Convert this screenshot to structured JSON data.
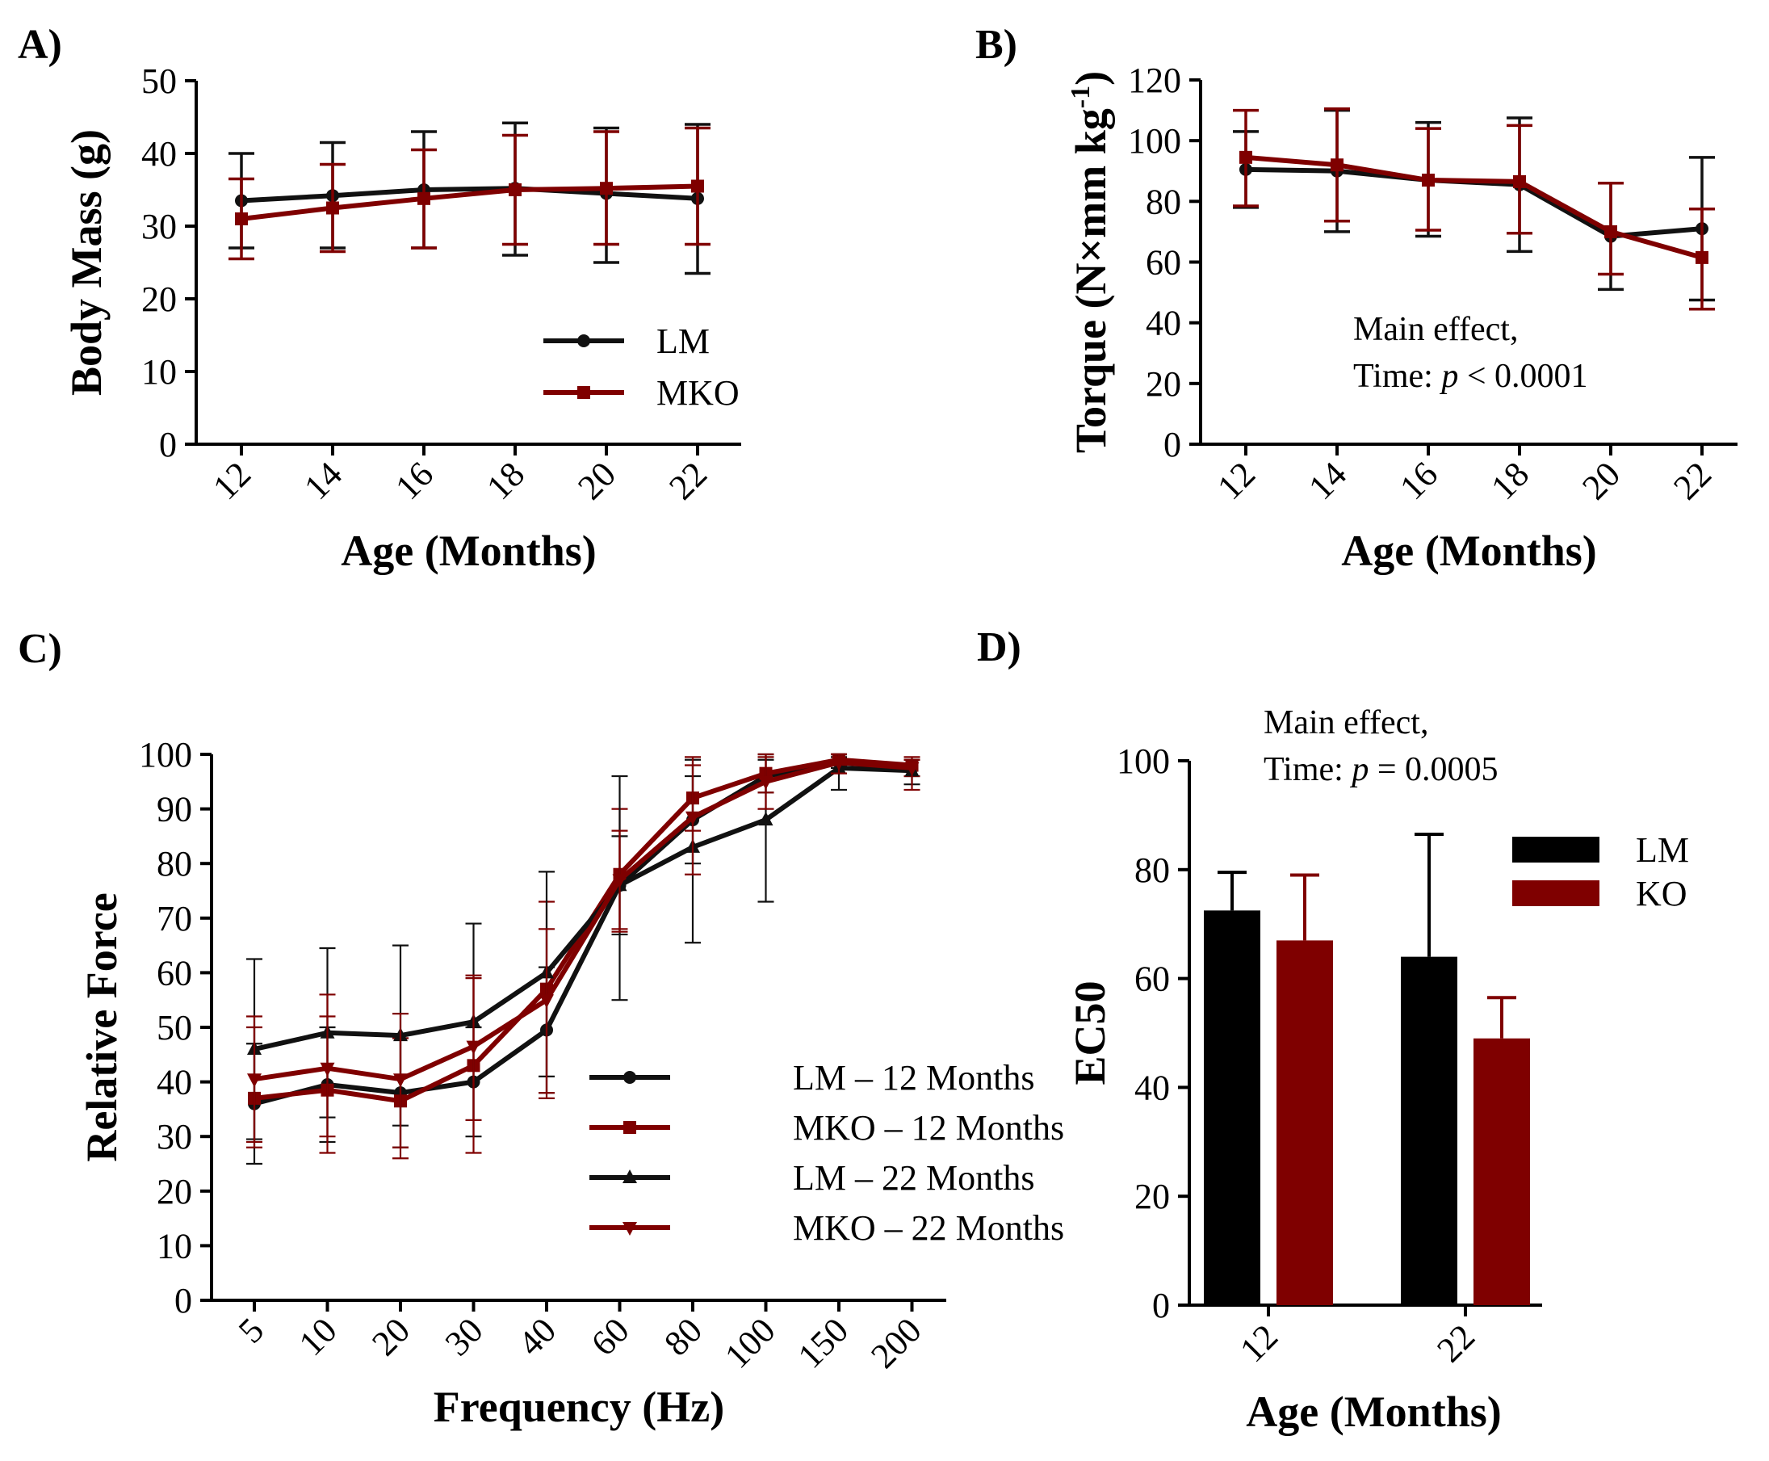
{
  "colors": {
    "black": "#111111",
    "red": "#7f0000"
  },
  "chart_data": [
    {
      "id": "A",
      "panel_label": "A)",
      "type": "line",
      "x": [
        12,
        14,
        16,
        18,
        20,
        22
      ],
      "x_tick_labels": [
        "12",
        "14",
        "16",
        "18",
        "20",
        "22"
      ],
      "xlabel": "Age (Months)",
      "ylabel": "Body Mass (g)",
      "ylim": [
        0,
        50
      ],
      "y_ticks": [
        0,
        10,
        20,
        30,
        40,
        50
      ],
      "grid": false,
      "legend_position": "right",
      "annotation": null,
      "series": [
        {
          "name": "LM",
          "color": "#111111",
          "marker": "circle",
          "values": [
            33.5,
            34.2,
            35.0,
            35.2,
            34.5,
            33.8
          ],
          "err_up": [
            40,
            41.5,
            43,
            44.2,
            43.5,
            44
          ],
          "err_down": [
            27,
            27,
            27,
            26,
            25,
            23.5
          ]
        },
        {
          "name": "MKO",
          "color": "#7f0000",
          "marker": "square",
          "values": [
            31.0,
            32.5,
            33.8,
            35.0,
            35.2,
            35.5
          ],
          "err_up": [
            36.5,
            38.5,
            40.5,
            42.5,
            43,
            43.5
          ],
          "err_down": [
            25.5,
            26.5,
            27,
            27.5,
            27.5,
            27.5
          ]
        }
      ]
    },
    {
      "id": "B",
      "panel_label": "B)",
      "type": "line",
      "x": [
        12,
        14,
        16,
        18,
        20,
        22
      ],
      "x_tick_labels": [
        "12",
        "14",
        "16",
        "18",
        "20",
        "22"
      ],
      "xlabel": "Age (Months)",
      "ylabel": "Torque (N×mm kg",
      "ylabel_sup": "-1",
      "ylabel_tail": ")",
      "ylim": [
        0,
        120
      ],
      "y_ticks": [
        0,
        20,
        40,
        60,
        80,
        100,
        120
      ],
      "grid": false,
      "legend_position": "none",
      "annotation": {
        "line1": "Main effect,",
        "line2_prefix": "Time: ",
        "line2_italic": "p",
        "line2_suffix": " < 0.0001"
      },
      "series": [
        {
          "name": "LM",
          "color": "#111111",
          "marker": "circle",
          "values": [
            90.5,
            90.0,
            87.0,
            85.5,
            68.5,
            71.0
          ],
          "err_up": [
            103,
            110,
            106,
            107.5,
            86,
            94.5
          ],
          "err_down": [
            78,
            70,
            68.5,
            63.5,
            51,
            47.5
          ]
        },
        {
          "name": "MKO",
          "color": "#7f0000",
          "marker": "square",
          "values": [
            94.5,
            92.0,
            87.0,
            86.5,
            70.0,
            61.5
          ],
          "err_up": [
            110,
            110.5,
            104,
            105,
            86,
            77.5
          ],
          "err_down": [
            78.5,
            73.5,
            70.5,
            69.5,
            56,
            44.5
          ]
        }
      ]
    },
    {
      "id": "C",
      "panel_label": "C)",
      "type": "line",
      "x": [
        5,
        10,
        20,
        30,
        40,
        60,
        80,
        100,
        150,
        200
      ],
      "x_tick_labels": [
        "5",
        "10",
        "20",
        "30",
        "40",
        "60",
        "80",
        "100",
        "150",
        "200"
      ],
      "xlabel": "Frequency (Hz)",
      "ylabel": "Relative Force",
      "ylim": [
        0,
        100
      ],
      "y_ticks": [
        0,
        10,
        20,
        30,
        40,
        50,
        60,
        70,
        80,
        90,
        100
      ],
      "grid": false,
      "legend_position": "lower-right",
      "annotation": null,
      "series": [
        {
          "name": "LM – 12 Months",
          "color": "#111111",
          "marker": "circle",
          "values": [
            36.0,
            39.5,
            38.0,
            40.0,
            49.5,
            76.0,
            88.0,
            96.0,
            98.5,
            97.5
          ],
          "err_up": [
            47,
            50,
            48,
            50,
            61,
            85,
            96,
            99,
            99.5,
            99
          ],
          "err_down": [
            25,
            29,
            28,
            30,
            38,
            67,
            80,
            93,
            97.5,
            96
          ]
        },
        {
          "name": "MKO – 12 Months",
          "color": "#7f0000",
          "marker": "square",
          "values": [
            37.0,
            38.5,
            36.5,
            43.0,
            57.0,
            78.0,
            92.0,
            96.5,
            99.0,
            98.0
          ],
          "err_up": [
            50,
            52,
            48,
            59,
            73,
            90,
            98,
            99.5,
            100,
            99.5
          ],
          "err_down": [
            28,
            27,
            26,
            27,
            37,
            68,
            86,
            93,
            98,
            96
          ]
        },
        {
          "name": "LM – 22 Months",
          "color": "#111111",
          "marker": "triangle",
          "values": [
            46.0,
            49.0,
            48.5,
            51.0,
            60.0,
            76.0,
            83.0,
            88.0,
            97.5,
            97.0
          ],
          "err_up": [
            62.5,
            64.5,
            65,
            69,
            78.5,
            96,
            99,
            100,
            100,
            99
          ],
          "err_down": [
            29.5,
            33.5,
            32,
            33,
            41,
            55,
            65.5,
            73,
            93.5,
            94.5
          ]
        },
        {
          "name": "MKO – 22 Months",
          "color": "#7f0000",
          "marker": "triangle-down",
          "values": [
            40.5,
            42.5,
            40.5,
            46.5,
            55.0,
            77.0,
            88.5,
            95.0,
            98.5,
            97.5
          ],
          "err_up": [
            52,
            56,
            52.5,
            59.5,
            68,
            86,
            99.5,
            100,
            100,
            99
          ],
          "err_down": [
            29,
            30,
            28,
            33,
            38,
            67.5,
            78,
            90,
            96.5,
            93.5
          ]
        }
      ]
    },
    {
      "id": "D",
      "panel_label": "D)",
      "type": "bar",
      "categories": [
        "12",
        "22"
      ],
      "xlabel": "Age (Months)",
      "ylabel": "EC50",
      "ylim": [
        0,
        100
      ],
      "y_ticks": [
        0,
        20,
        40,
        60,
        80,
        100
      ],
      "grid": false,
      "legend_position": "top-right",
      "annotation": {
        "line1": "Main effect,",
        "line2_prefix": "Time: ",
        "line2_italic": "p",
        "line2_suffix": " = 0.0005"
      },
      "series": [
        {
          "name": "LM",
          "color": "#000000",
          "values": [
            72.5,
            64.0
          ],
          "err_up": [
            79.5,
            86.5
          ]
        },
        {
          "name": "KO",
          "color": "#7f0000",
          "values": [
            67.0,
            49.0
          ],
          "err_up": [
            79.0,
            56.5
          ]
        }
      ]
    }
  ]
}
